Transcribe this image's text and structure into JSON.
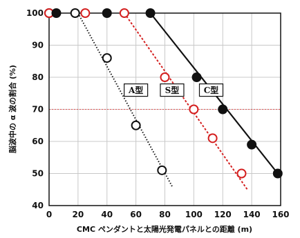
{
  "chart_data": {
    "type": "scatter",
    "title": "",
    "xlabel": "CMC ペンダントと太陽光発電パネルとの距離 (m)",
    "ylabel": "脳波中の α 波の割合 (%)",
    "xlim": [
      0,
      160
    ],
    "ylim": [
      40,
      100
    ],
    "xticks": [
      0,
      20,
      40,
      60,
      80,
      100,
      120,
      140,
      160
    ],
    "yticks": [
      40,
      50,
      60,
      70,
      80,
      90,
      100
    ],
    "grid": true,
    "reference_line": {
      "y": 70,
      "color": "#e05050"
    },
    "series": [
      {
        "name": "A型",
        "marker": "open",
        "color": "#111111",
        "line_style": "dotted",
        "points": [
          [
            0,
            100
          ],
          [
            18,
            100
          ],
          [
            40,
            86
          ],
          [
            60,
            65
          ],
          [
            78,
            51
          ]
        ],
        "trend": [
          [
            20,
            100
          ],
          [
            85,
            46
          ]
        ]
      },
      {
        "name": "S型",
        "marker": "open",
        "color": "#d42020",
        "line_style": "dashed",
        "points": [
          [
            0,
            100
          ],
          [
            25,
            100
          ],
          [
            52,
            100
          ],
          [
            80,
            80
          ],
          [
            100,
            70
          ],
          [
            113,
            61
          ],
          [
            133,
            50
          ]
        ],
        "trend": [
          [
            52,
            100
          ],
          [
            137,
            45
          ]
        ]
      },
      {
        "name": "C型",
        "marker": "filled",
        "color": "#111111",
        "line_style": "solid",
        "points": [
          [
            5,
            100
          ],
          [
            40,
            100
          ],
          [
            70,
            100
          ],
          [
            102,
            80
          ],
          [
            120,
            70
          ],
          [
            140,
            59
          ],
          [
            158,
            50
          ]
        ],
        "trend": [
          [
            70,
            100
          ],
          [
            158,
            50
          ]
        ]
      }
    ],
    "labels": [
      {
        "text": "A型",
        "x": 60,
        "y": 76
      },
      {
        "text": "S型",
        "x": 85,
        "y": 76
      },
      {
        "text": "C型",
        "x": 112,
        "y": 76
      }
    ]
  }
}
